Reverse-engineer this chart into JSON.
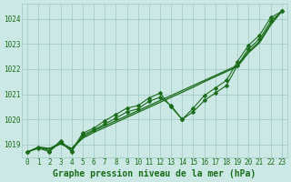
{
  "title": "Graphe pression niveau de la mer (hPa)",
  "x": [
    0,
    1,
    2,
    3,
    4,
    5,
    6,
    7,
    8,
    9,
    10,
    11,
    12,
    13,
    14,
    15,
    16,
    17,
    18,
    19,
    20,
    21,
    22,
    23
  ],
  "line_smooth1": [
    1018.7,
    1018.9,
    1018.85,
    1019.05,
    1018.85,
    1019.3,
    1019.55,
    1019.75,
    1019.95,
    1020.15,
    1020.35,
    1020.55,
    1020.75,
    1020.95,
    1021.15,
    1021.35,
    1021.55,
    1021.75,
    1021.95,
    1022.15,
    1022.7,
    1023.1,
    1023.8,
    1024.3
  ],
  "line_smooth2": [
    1018.7,
    1018.88,
    1018.82,
    1019.02,
    1018.82,
    1019.25,
    1019.48,
    1019.68,
    1019.88,
    1020.08,
    1020.28,
    1020.48,
    1020.68,
    1020.88,
    1021.08,
    1021.28,
    1021.5,
    1021.7,
    1021.9,
    1022.1,
    1022.65,
    1023.05,
    1023.75,
    1024.3
  ],
  "line_wiggly1": [
    1018.7,
    1018.9,
    1018.75,
    1019.15,
    1018.75,
    1019.45,
    1019.65,
    1019.95,
    1020.2,
    1020.45,
    1020.55,
    1020.85,
    1021.05,
    1020.5,
    1020.0,
    1020.45,
    1020.95,
    1021.25,
    1021.55,
    1022.3,
    1022.95,
    1023.35,
    1024.05,
    1024.3
  ],
  "line_wiggly2": [
    1018.7,
    1018.85,
    1018.72,
    1019.1,
    1018.72,
    1019.38,
    1019.58,
    1019.82,
    1020.05,
    1020.3,
    1020.42,
    1020.72,
    1020.88,
    1020.55,
    1020.0,
    1020.3,
    1020.75,
    1021.05,
    1021.35,
    1022.15,
    1022.8,
    1023.2,
    1023.9,
    1024.3
  ],
  "line_color": "#1a6b1a",
  "marker": "D",
  "marker_size": 2.5,
  "bg_color": "#cce8e4",
  "grid_color": "#9dc8c4",
  "text_color": "#1a6b1a",
  "ylim": [
    1018.5,
    1024.6
  ],
  "yticks": [
    1019,
    1020,
    1021,
    1022,
    1023,
    1024
  ],
  "xticks": [
    0,
    1,
    2,
    3,
    4,
    5,
    6,
    7,
    8,
    9,
    10,
    11,
    12,
    13,
    14,
    15,
    16,
    17,
    18,
    19,
    20,
    21,
    22,
    23
  ],
  "title_fontsize": 7,
  "tick_fontsize": 5.5
}
